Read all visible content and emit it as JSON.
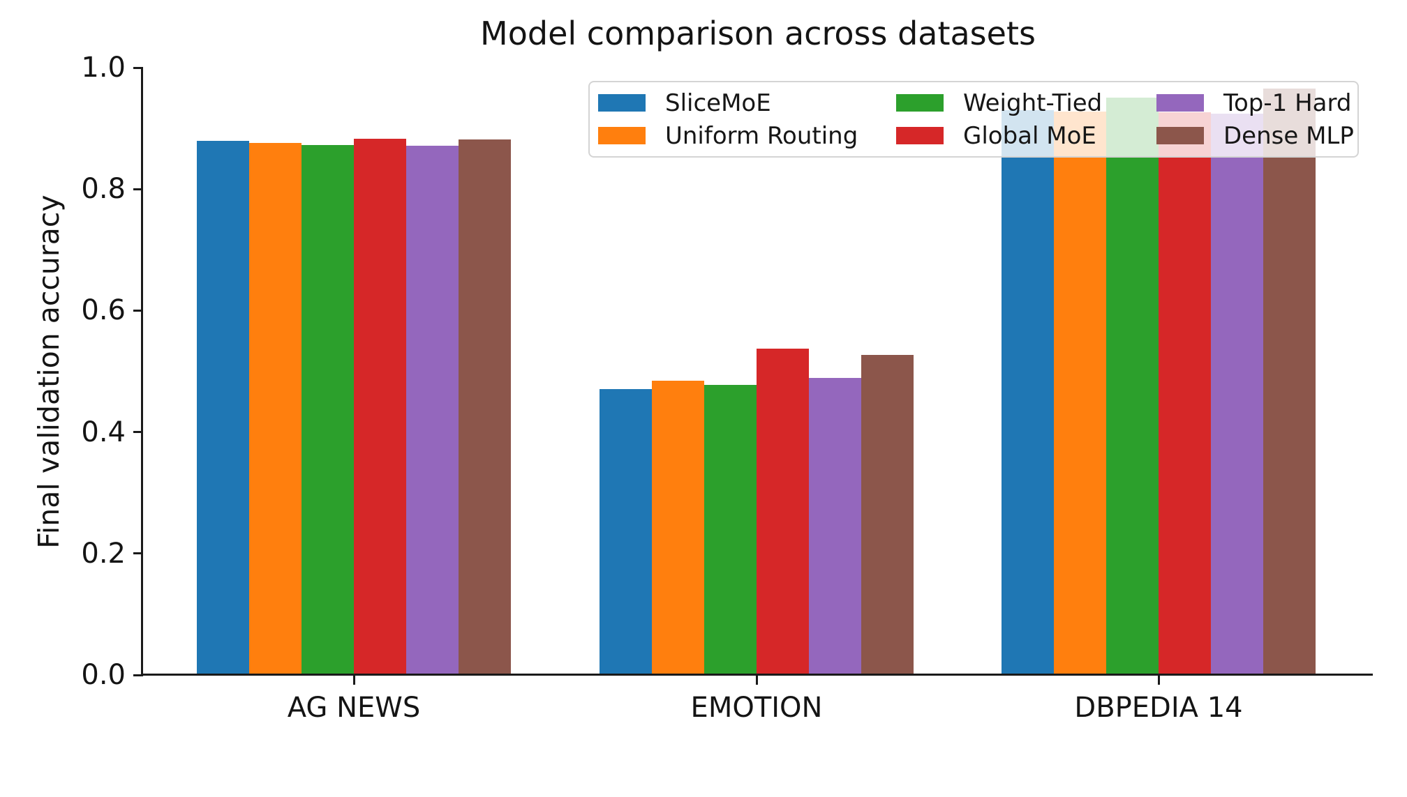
{
  "figure": {
    "title": "Model comparison across datasets",
    "ylabel": "Final validation accuracy"
  },
  "chart_data": {
    "type": "bar",
    "title": "Model comparison across datasets",
    "xlabel": "",
    "ylabel": "Final validation accuracy",
    "categories": [
      "AG NEWS",
      "EMOTION",
      "DBPEDIA 14"
    ],
    "series": [
      {
        "name": "SliceMoE",
        "color": "#1f77b4",
        "values": [
          0.879,
          0.471,
          0.93
        ]
      },
      {
        "name": "Uniform Routing",
        "color": "#ff7f0e",
        "values": [
          0.876,
          0.485,
          0.928
        ]
      },
      {
        "name": "Weight-Tied",
        "color": "#2ca02c",
        "values": [
          0.873,
          0.478,
          0.951
        ]
      },
      {
        "name": "Global MoE",
        "color": "#d62728",
        "values": [
          0.883,
          0.537,
          0.926
        ]
      },
      {
        "name": "Top-1 Hard",
        "color": "#9467bd",
        "values": [
          0.871,
          0.489,
          0.924
        ]
      },
      {
        "name": "Dense MLP",
        "color": "#8c564b",
        "values": [
          0.882,
          0.527,
          0.965
        ]
      }
    ],
    "ylim": [
      0.0,
      1.0
    ],
    "yticks": [
      0.0,
      0.2,
      0.4,
      0.6,
      0.8,
      1.0
    ],
    "ytick_labels": [
      "0.0",
      "0.2",
      "0.4",
      "0.6",
      "0.8",
      "1.0"
    ],
    "grid": false,
    "legend": {
      "position": "upper center",
      "columns": 3,
      "rows": 2,
      "fill_order": "column-major",
      "background": "rgba(255,255,255,0.8)",
      "border_color": "#d4d4d4",
      "entries": [
        "SliceMoE",
        "Uniform Routing",
        "Weight-Tied",
        "Global MoE",
        "Top-1 Hard",
        "Dense MLP"
      ]
    }
  }
}
